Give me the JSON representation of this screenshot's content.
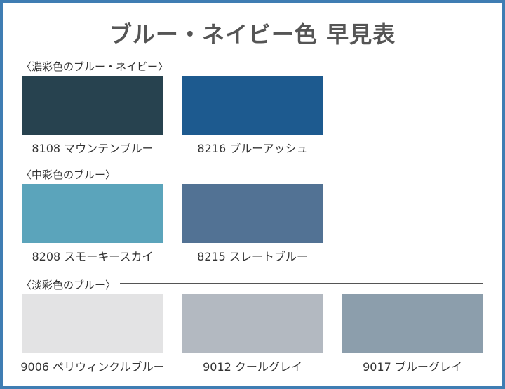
{
  "title": "ブルー・ネイビー色 早見表",
  "sections": [
    {
      "heading": "〈濃彩色のブルー・ネイビー〉",
      "swatches": [
        {
          "label": "8108 マウンテンブルー",
          "color": "#27424f"
        },
        {
          "label": "8216 ブルーアッシュ",
          "color": "#1d5a8f"
        }
      ]
    },
    {
      "heading": "〈中彩色のブルー〉",
      "swatches": [
        {
          "label": "8208 スモーキースカイ",
          "color": "#5ba4bb"
        },
        {
          "label": "8215 スレートブルー",
          "color": "#527294"
        }
      ]
    },
    {
      "heading": "〈淡彩色のブルー〉",
      "swatches": [
        {
          "label": "9006 ペリウィンクルブルー",
          "color": "#e3e3e4"
        },
        {
          "label": "9012 クールグレイ",
          "color": "#b3b9c1"
        },
        {
          "label": "9017 ブルーグレイ",
          "color": "#8c9eac"
        }
      ]
    }
  ]
}
